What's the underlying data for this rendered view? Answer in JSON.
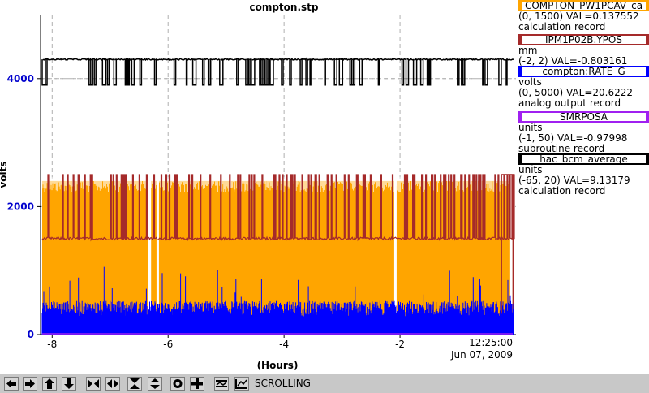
{
  "title": "compton.stp",
  "colors": {
    "compton_pw1pcav": "#ffa500",
    "ipm1p02b": "#a52a2a",
    "rate_g": "#0000ff",
    "smrposa": "#a020f0",
    "hac_bcm": "#000000",
    "axis_text_y": "#0000cd"
  },
  "legend": [
    {
      "name": "COMPTON_PW1PCAV_ca",
      "lines": [
        "(0, 1500) VAL=0.137552",
        "calculation record"
      ]
    },
    {
      "name": "IPM1P02B.YPOS",
      "lines": [
        "mm",
        "(-2, 2) VAL=-0.803161"
      ]
    },
    {
      "name": "compton:RATE_G",
      "lines": [
        "volts",
        "(0, 5000) VAL=20.6222",
        "analog output record"
      ]
    },
    {
      "name": "SMRPOSA",
      "lines": [
        "units",
        "(-1, 50) VAL=-0.97998",
        "subroutine record"
      ]
    },
    {
      "name": "hac_bcm_average",
      "lines": [
        "units",
        "(-65, 20) VAL=9.13179",
        "calculation record"
      ]
    }
  ],
  "toolbar": {
    "mode": "SCROLLING",
    "buttons": [
      "left-arrow-icon",
      "right-arrow-icon",
      "up-arrow-icon",
      "down-arrow-icon",
      "zoom-in-x-icon",
      "zoom-out-x-icon",
      "zoom-in-y-icon",
      "zoom-out-y-icon",
      "autoscale-icon",
      "add-pv-icon",
      "lock-axes-icon",
      "time-scale-icon"
    ]
  },
  "chart_data": {
    "type": "line",
    "title": "compton.stp",
    "ylabel": "volts",
    "xlabel": "(Hours)",
    "y_ticks": [
      "0",
      "2000",
      "4000"
    ],
    "x_ticks": [
      "-8",
      "-6",
      "-4",
      "-2"
    ],
    "time_label": "12:25:00",
    "date_label": "Jun 07, 2009",
    "ylim": [
      0,
      5000
    ],
    "xlim": [
      -8.2,
      0
    ],
    "grid": true,
    "series": [
      {
        "name": "hac_bcm_average",
        "approx_level": 4300,
        "dropouts_to": 3900
      },
      {
        "name": "COMPTON_PW1PCAV_ca",
        "approx_band": [
          0,
          2400
        ]
      },
      {
        "name": "IPM1P02B.YPOS",
        "approx_level": 1500,
        "spikes_to": 2500
      },
      {
        "name": "compton:RATE_G",
        "approx_band": [
          0,
          500
        ]
      },
      {
        "name": "SMRPOSA",
        "approx_level": 0
      }
    ]
  }
}
